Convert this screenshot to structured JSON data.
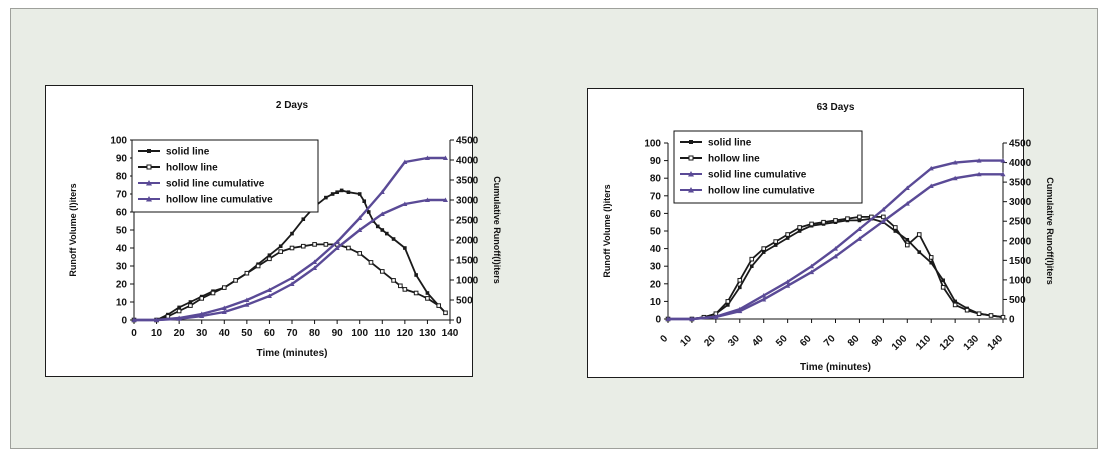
{
  "chart_data": [
    {
      "type": "line",
      "title": "2 Days",
      "xlabel": "Time (minutes)",
      "ylabel": "Runoff Volume (l)iters",
      "y2label": "Cumulative Runoff(l)iters",
      "xlim": [
        0,
        140
      ],
      "ylim": [
        0,
        100
      ],
      "y2lim": [
        0,
        4500
      ],
      "x_ticks": [
        0,
        10,
        20,
        30,
        40,
        50,
        60,
        70,
        80,
        90,
        100,
        110,
        120,
        130,
        140
      ],
      "x_tick_labels": [
        "0",
        "10",
        "20",
        "30",
        "40",
        "50",
        "60",
        "70",
        "80",
        "90",
        "100",
        "110",
        "120",
        "130",
        "140"
      ],
      "y_ticks": [
        0,
        10,
        20,
        30,
        40,
        50,
        60,
        70,
        80,
        90,
        100
      ],
      "y_tick_labels": [
        "0",
        "10",
        "20",
        "30",
        "40",
        "50",
        "60",
        "70",
        "80",
        "90",
        "100"
      ],
      "y2_ticks": [
        0,
        500,
        1000,
        1500,
        2000,
        2500,
        3000,
        3500,
        4000,
        4500
      ],
      "y2_tick_labels": [
        "0",
        "500",
        "1000",
        "1500",
        "2000",
        "2500",
        "3000",
        "3500",
        "4000",
        "4500"
      ],
      "grid": false,
      "legend_position": "top-left",
      "series": [
        {
          "name": "solid line",
          "axis": "left",
          "color": "#1a1a1a",
          "x": [
            0,
            10,
            15,
            20,
            25,
            30,
            35,
            40,
            45,
            50,
            55,
            60,
            65,
            70,
            75,
            80,
            85,
            88,
            90,
            92,
            95,
            100,
            102,
            104,
            106,
            108,
            110,
            112,
            115,
            120,
            125,
            130,
            135,
            138
          ],
          "y": [
            0,
            0,
            3,
            7,
            10,
            13,
            16,
            18,
            22,
            26,
            31,
            36,
            41,
            48,
            56,
            63,
            68,
            70,
            71,
            72,
            71,
            70,
            66,
            60,
            55,
            52,
            50,
            48,
            45,
            40,
            25,
            15,
            8,
            4
          ]
        },
        {
          "name": "hollow line",
          "axis": "left",
          "color": "#1a1a1a",
          "x": [
            0,
            10,
            15,
            20,
            25,
            30,
            35,
            40,
            45,
            50,
            55,
            60,
            65,
            70,
            75,
            80,
            85,
            90,
            95,
            100,
            105,
            110,
            115,
            118,
            120,
            125,
            130,
            135,
            138
          ],
          "y": [
            0,
            0,
            2,
            5,
            8,
            12,
            15,
            18,
            22,
            26,
            30,
            34,
            38,
            40,
            41,
            42,
            42,
            42,
            40,
            37,
            32,
            27,
            22,
            19,
            17,
            15,
            12,
            8,
            4
          ]
        },
        {
          "name": "solid line cumulative",
          "axis": "right",
          "color": "#5a4a96",
          "x": [
            0,
            10,
            20,
            30,
            40,
            50,
            60,
            70,
            80,
            90,
            100,
            110,
            120,
            130,
            138
          ],
          "y": [
            0,
            0,
            50,
            150,
            300,
            500,
            750,
            1050,
            1450,
            1950,
            2550,
            3200,
            3950,
            4050,
            4050
          ]
        },
        {
          "name": "hollow line cumulative",
          "axis": "right",
          "color": "#5a4a96",
          "x": [
            0,
            10,
            20,
            30,
            40,
            50,
            60,
            70,
            80,
            90,
            100,
            110,
            120,
            130,
            138
          ],
          "y": [
            0,
            0,
            30,
            100,
            200,
            380,
            600,
            900,
            1300,
            1800,
            2250,
            2650,
            2900,
            3000,
            3000
          ]
        }
      ]
    },
    {
      "type": "line",
      "title": "63 Days",
      "xlabel": "Time (minutes)",
      "ylabel": "Runoff Volume (l)iters",
      "y2label": "Cumulative Runoff(l)iters",
      "xlim": [
        0,
        140
      ],
      "ylim": [
        0,
        100
      ],
      "y2lim": [
        0,
        4500
      ],
      "x_ticks": [
        0,
        10,
        20,
        30,
        40,
        50,
        60,
        70,
        80,
        90,
        100,
        110,
        120,
        130,
        140
      ],
      "x_tick_labels": [
        "0",
        "10",
        "20",
        "30",
        "40",
        "50",
        "60",
        "70",
        "80",
        "90",
        "100",
        "110",
        "120",
        "130",
        "140"
      ],
      "y_ticks": [
        0,
        10,
        20,
        30,
        40,
        50,
        60,
        70,
        80,
        90,
        100
      ],
      "y_tick_labels": [
        "0",
        "10",
        "20",
        "30",
        "40",
        "50",
        "60",
        "70",
        "80",
        "90",
        "100"
      ],
      "y2_ticks": [
        0,
        500,
        1000,
        1500,
        2000,
        2500,
        3000,
        3500,
        4000,
        4500
      ],
      "y2_tick_labels": [
        "0",
        "500",
        "1000",
        "1500",
        "2000",
        "2500",
        "3000",
        "3500",
        "4000",
        "4500"
      ],
      "grid": false,
      "legend_position": "top-left",
      "series": [
        {
          "name": "solid line",
          "axis": "left",
          "color": "#1a1a1a",
          "x": [
            0,
            10,
            15,
            20,
            25,
            30,
            35,
            40,
            45,
            50,
            55,
            60,
            65,
            70,
            75,
            80,
            85,
            90,
            95,
            100,
            105,
            110,
            115,
            120,
            125,
            130,
            135,
            140
          ],
          "y": [
            0,
            0,
            1,
            3,
            8,
            18,
            30,
            38,
            42,
            46,
            50,
            53,
            54,
            55,
            56,
            56,
            57,
            55,
            50,
            45,
            38,
            32,
            22,
            10,
            6,
            3,
            2,
            1
          ]
        },
        {
          "name": "hollow line",
          "axis": "left",
          "color": "#1a1a1a",
          "x": [
            0,
            10,
            15,
            20,
            25,
            30,
            35,
            40,
            45,
            50,
            55,
            60,
            65,
            70,
            75,
            80,
            85,
            90,
            95,
            100,
            105,
            110,
            115,
            120,
            125,
            130,
            135,
            140
          ],
          "y": [
            0,
            0,
            1,
            3,
            10,
            22,
            34,
            40,
            44,
            48,
            52,
            54,
            55,
            56,
            57,
            58,
            58,
            58,
            52,
            42,
            48,
            35,
            18,
            8,
            5,
            3,
            2,
            1
          ]
        },
        {
          "name": "solid line cumulative",
          "axis": "right",
          "color": "#5a4a96",
          "x": [
            0,
            10,
            20,
            30,
            40,
            50,
            60,
            70,
            80,
            90,
            100,
            110,
            120,
            130,
            140
          ],
          "y": [
            0,
            0,
            50,
            200,
            500,
            850,
            1200,
            1600,
            2050,
            2500,
            2950,
            3400,
            3600,
            3700,
            3700
          ]
        },
        {
          "name": "hollow line cumulative",
          "axis": "right",
          "color": "#5a4a96",
          "x": [
            0,
            10,
            20,
            30,
            40,
            50,
            60,
            70,
            80,
            90,
            100,
            110,
            120,
            130,
            140
          ],
          "y": [
            0,
            0,
            60,
            250,
            600,
            950,
            1350,
            1800,
            2300,
            2800,
            3350,
            3850,
            4000,
            4050,
            4050
          ]
        }
      ]
    }
  ]
}
